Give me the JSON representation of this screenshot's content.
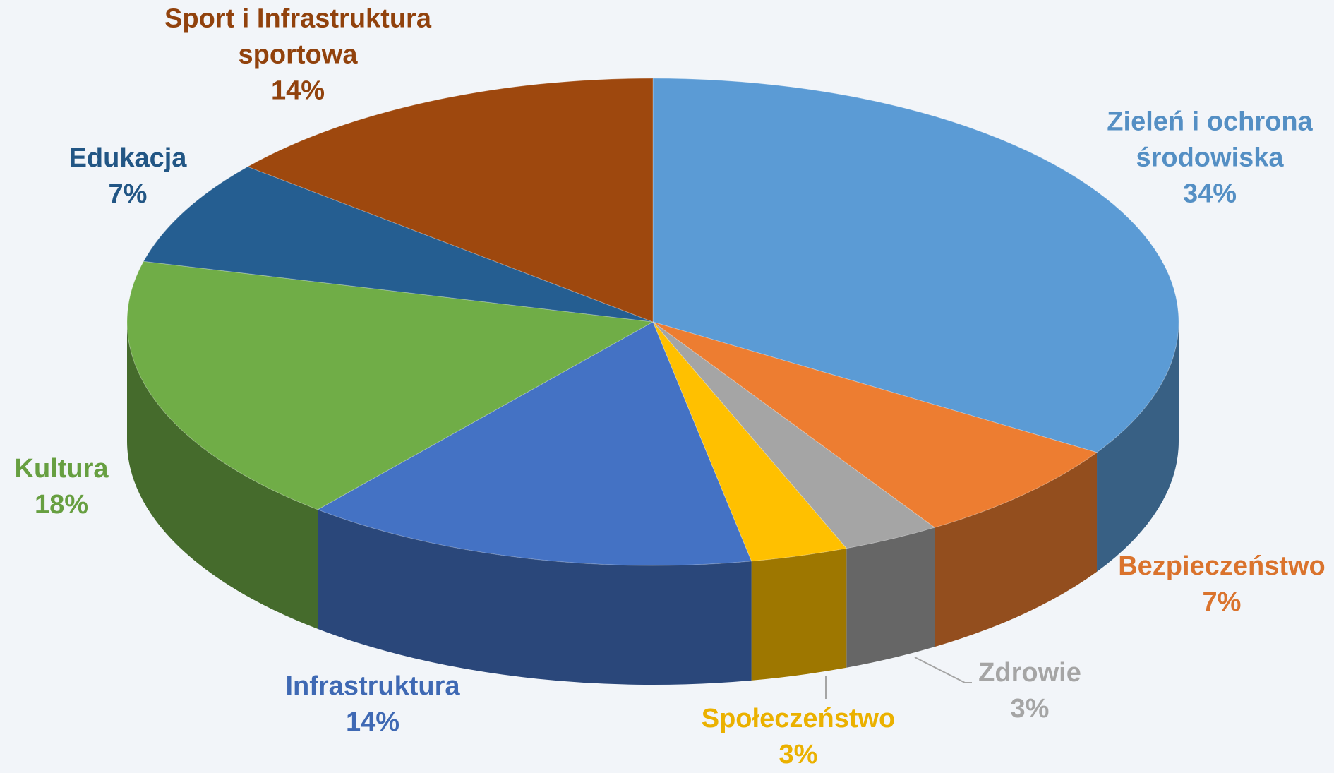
{
  "chart_data": {
    "type": "pie3d",
    "categories": [
      "Zieleń i ochrona środowiska",
      "Bezpieczeństwo",
      "Zdrowie",
      "Społeczeństwo",
      "Infrastruktura",
      "Kultura",
      "Edukacja",
      "Sport i Infrastruktura sportowa"
    ],
    "values": [
      34,
      7,
      3,
      3,
      14,
      18,
      7,
      14
    ],
    "value_labels": [
      "34%",
      "7%",
      "3%",
      "3%",
      "14%",
      "18%",
      "7%",
      "14%"
    ],
    "colors": [
      "#5b9bd5",
      "#ed7d31",
      "#a5a5a5",
      "#ffc000",
      "#4472c4",
      "#70ad47",
      "#255e91",
      "#9e480e"
    ]
  }
}
